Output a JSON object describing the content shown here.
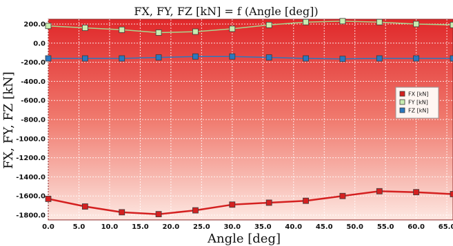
{
  "chart_data": {
    "type": "line",
    "title": "FX, FY, FZ [kN] = f (Angle [deg])",
    "xlabel": "Angle [deg]",
    "ylabel": "FX, FY, FZ [kN]",
    "xlim": [
      0,
      66
    ],
    "ylim": [
      -1850,
      250
    ],
    "x_ticks": [
      0,
      5,
      10,
      15,
      20,
      25,
      30,
      35,
      40,
      45,
      50,
      55,
      60,
      65
    ],
    "x_tick_labels": [
      "0.0",
      "5.0",
      "10.0",
      "15.0",
      "20.0",
      "25.0",
      "30.0",
      "35.0",
      "40.0",
      "45.0",
      "50.0",
      "55.0",
      "60.0",
      "65.0"
    ],
    "y_ticks": [
      200,
      0,
      -200,
      -400,
      -600,
      -800,
      -1000,
      -1200,
      -1400,
      -1600,
      -1800
    ],
    "y_tick_labels": [
      "200.0",
      "0.0",
      "-200.0",
      "-400.0",
      "-600.0",
      "-800.0",
      "-1000.0",
      "-1200.0",
      "-1400.0",
      "-1600.0",
      "-1800.0"
    ],
    "grid": true,
    "legend_position": "right",
    "series": [
      {
        "name": "FX [kN]",
        "color": "#d42020",
        "x": [
          0,
          6,
          12,
          18,
          24,
          30,
          36,
          42,
          48,
          54,
          60,
          66
        ],
        "values": [
          -1630,
          -1710,
          -1770,
          -1790,
          -1750,
          -1690,
          -1670,
          -1650,
          -1600,
          -1550,
          -1560,
          -1580
        ]
      },
      {
        "name": "FY [kN]",
        "color": "#c8ecb0",
        "x": [
          0,
          6,
          12,
          18,
          24,
          30,
          36,
          42,
          48,
          54,
          60,
          66
        ],
        "values": [
          180,
          160,
          140,
          110,
          120,
          150,
          190,
          220,
          230,
          220,
          200,
          190
        ]
      },
      {
        "name": "FZ [kN]",
        "color": "#2a78c0",
        "x": [
          0,
          6,
          12,
          18,
          24,
          30,
          36,
          42,
          48,
          54,
          60,
          66
        ],
        "values": [
          -160,
          -160,
          -160,
          -150,
          -140,
          -140,
          -150,
          -160,
          -165,
          -160,
          -160,
          -160
        ]
      }
    ]
  }
}
